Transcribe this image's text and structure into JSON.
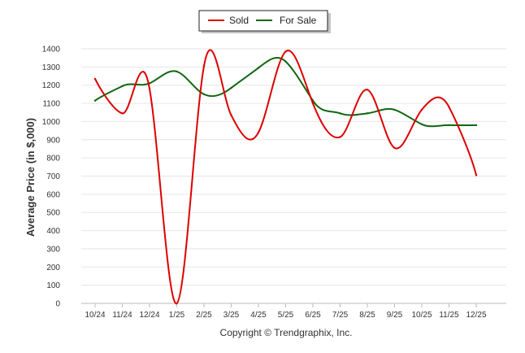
{
  "chart_data": {
    "type": "line",
    "title": "",
    "xlabel": "",
    "ylabel": "Average Price (in $,000)",
    "credit": "Copyright © Trendgraphix, Inc.",
    "categories": [
      "10/24",
      "11/24",
      "12/24",
      "1/25",
      "2/25",
      "3/25",
      "4/25",
      "5/25",
      "6/25",
      "7/25",
      "8/25",
      "9/25",
      "10/25",
      "11/25",
      "12/25"
    ],
    "ylim": [
      0,
      1400
    ],
    "yticks": [
      0,
      100,
      200,
      300,
      400,
      500,
      600,
      700,
      800,
      900,
      1000,
      1100,
      1200,
      1300,
      1400
    ],
    "grid": true,
    "smooth": true,
    "legend_position": "top-center",
    "series": [
      {
        "name": "Sold",
        "color": "#dd0000",
        "values": [
          1235,
          1045,
          1180,
          0,
          1305,
          1035,
          940,
          1385,
          1100,
          915,
          1175,
          855,
          1065,
          1080,
          705
        ]
      },
      {
        "name": "For Sale",
        "color": "#116611",
        "values": [
          1115,
          1195,
          1210,
          1275,
          1150,
          1185,
          1295,
          1330,
          1115,
          1045,
          1045,
          1065,
          985,
          980,
          980
        ]
      }
    ]
  }
}
